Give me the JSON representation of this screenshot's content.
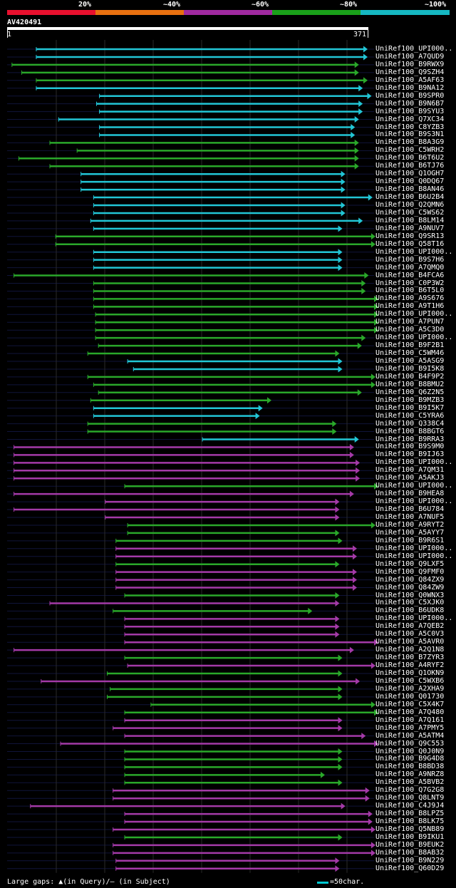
{
  "legend": [
    {
      "label": "20%",
      "color": "#e8102e"
    },
    {
      "label": "~40%",
      "color": "#e87010"
    },
    {
      "label": "~60%",
      "color": "#a02aa0"
    },
    {
      "label": "~80%",
      "color": "#1aa01a"
    },
    {
      "label": "~100%",
      "color": "#16b8c2"
    }
  ],
  "query": {
    "name": "AV420491",
    "start": "1",
    "end": "371",
    "length": 371
  },
  "colors": {
    "cyan": "#22c6d6",
    "green": "#2aa82a",
    "magenta": "#a43aa8",
    "gap": "#ffffc0"
  },
  "hits": [
    {
      "label": "UniRef100_UPI000..",
      "color": "cyan",
      "start": 30,
      "end": 371
    },
    {
      "label": "UniRef100_A7QUD9",
      "color": "cyan",
      "start": 30,
      "end": 371
    },
    {
      "label": "UniRef100_B9RWX9",
      "color": "green",
      "start": 5,
      "end": 362
    },
    {
      "label": "UniRef100_Q9SZH4",
      "color": "green",
      "start": 15,
      "end": 362
    },
    {
      "label": "UniRef100_A5AF63",
      "color": "green",
      "start": 30,
      "end": 371
    },
    {
      "label": "UniRef100_B9NA12",
      "color": "cyan",
      "start": 30,
      "end": 366
    },
    {
      "label": "UniRef100_B9SPR0",
      "color": "cyan",
      "start": 95,
      "end": 375
    },
    {
      "label": "UniRef100_B9N6B7",
      "color": "cyan",
      "start": 92,
      "end": 366
    },
    {
      "label": "UniRef100_B9SYU3",
      "color": "cyan",
      "start": 95,
      "end": 366
    },
    {
      "label": "UniRef100_Q7XC34",
      "color": "cyan",
      "start": 53,
      "end": 362
    },
    {
      "label": "UniRef100_C8YZB3",
      "color": "cyan",
      "start": 95,
      "end": 358
    },
    {
      "label": "UniRef100_B9S3N1",
      "color": "cyan",
      "start": 95,
      "end": 358
    },
    {
      "label": "UniRef100_B8A3G9",
      "color": "green",
      "start": 44,
      "end": 362
    },
    {
      "label": "UniRef100_C5WRH2",
      "color": "green",
      "start": 72,
      "end": 362
    },
    {
      "label": "UniRef100_B6T6U2",
      "color": "green",
      "start": 12,
      "end": 362
    },
    {
      "label": "UniRef100_B6TJ76",
      "color": "green",
      "start": 44,
      "end": 362
    },
    {
      "label": "UniRef100_Q1OGH7",
      "color": "cyan",
      "start": 76,
      "end": 348
    },
    {
      "label": "UniRef100_Q0DQ67",
      "color": "cyan",
      "start": 76,
      "end": 348
    },
    {
      "label": "UniRef100_B8AN46",
      "color": "cyan",
      "start": 76,
      "end": 348
    },
    {
      "label": "UniRef100_B6U2B4",
      "color": "cyan",
      "start": 89,
      "end": 376
    },
    {
      "label": "UniRef100_Q2QMN6",
      "color": "cyan",
      "start": 89,
      "end": 348
    },
    {
      "label": "UniRef100_C5WS62",
      "color": "cyan",
      "start": 89,
      "end": 348
    },
    {
      "label": "UniRef100_B8LM14",
      "color": "cyan",
      "start": 86,
      "end": 366
    },
    {
      "label": "UniRef100_A9NUV7",
      "color": "cyan",
      "start": 89,
      "end": 345
    },
    {
      "label": "UniRef100_Q9SR13",
      "color": "green",
      "start": 50,
      "end": 379
    },
    {
      "label": "UniRef100_Q58T16",
      "color": "green",
      "start": 50,
      "end": 379
    },
    {
      "label": "UniRef100_UPI000..",
      "color": "cyan",
      "start": 89,
      "end": 345
    },
    {
      "label": "UniRef100_B9S7H6",
      "color": "cyan",
      "start": 89,
      "end": 345
    },
    {
      "label": "UniRef100_A7QMQ0",
      "color": "cyan",
      "start": 89,
      "end": 345
    },
    {
      "label": "UniRef100_B4FCA6",
      "color": "green",
      "start": 7,
      "end": 372
    },
    {
      "label": "UniRef100_C0P3W2",
      "color": "green",
      "start": 89,
      "end": 369
    },
    {
      "label": "UniRef100_B6T5L0",
      "color": "green",
      "start": 89,
      "end": 369
    },
    {
      "label": "UniRef100_A9S676",
      "color": "green",
      "start": 89,
      "end": 382
    },
    {
      "label": "UniRef100_A9T1H6",
      "color": "green",
      "start": 89,
      "end": 382
    },
    {
      "label": "UniRef100_UPI000..",
      "color": "green",
      "start": 91,
      "end": 382
    },
    {
      "label": "UniRef100_A7PUN7",
      "color": "green",
      "start": 91,
      "end": 382
    },
    {
      "label": "UniRef100_A5C3D0",
      "color": "green",
      "start": 91,
      "end": 382
    },
    {
      "label": "UniRef100_UPI000..",
      "color": "green",
      "start": 91,
      "end": 369
    },
    {
      "label": "UniRef100_B9F2B1",
      "color": "green",
      "start": 94,
      "end": 365
    },
    {
      "label": "UniRef100_C5WM46",
      "color": "green",
      "start": 83,
      "end": 342
    },
    {
      "label": "UniRef100_A5ASG9",
      "color": "cyan",
      "start": 124,
      "end": 345
    },
    {
      "label": "UniRef100_B9I5K8",
      "color": "cyan",
      "start": 130,
      "end": 345
    },
    {
      "label": "UniRef100_B4F9P2",
      "color": "green",
      "start": 83,
      "end": 379
    },
    {
      "label": "UniRef100_B8BMU2",
      "color": "green",
      "start": 89,
      "end": 379
    },
    {
      "label": "UniRef100_Q6Z2N5",
      "color": "green",
      "start": 94,
      "end": 365
    },
    {
      "label": "UniRef100_B9MZB3",
      "color": "green",
      "start": 86,
      "end": 272
    },
    {
      "label": "UniRef100_B9I5K7",
      "color": "cyan",
      "start": 89,
      "end": 263
    },
    {
      "label": "UniRef100_C5YRA6",
      "color": "cyan",
      "start": 89,
      "end": 260
    },
    {
      "label": "UniRef100_Q338C4",
      "color": "green",
      "start": 83,
      "end": 339
    },
    {
      "label": "UniRef100_B8BGT6",
      "color": "green",
      "start": 83,
      "end": 339
    },
    {
      "label": "UniRef100_B9RRA3",
      "color": "cyan",
      "start": 201,
      "end": 362
    },
    {
      "label": "UniRef100_B9S9M0",
      "color": "magenta",
      "start": 7,
      "end": 357
    },
    {
      "label": "UniRef100_B9IJ63",
      "color": "magenta",
      "start": 7,
      "end": 357
    },
    {
      "label": "UniRef100_UPI000..",
      "color": "magenta",
      "start": 7,
      "end": 363
    },
    {
      "label": "UniRef100_A7QM31",
      "color": "magenta",
      "start": 7,
      "end": 363
    },
    {
      "label": "UniRef100_A5AKJ3",
      "color": "magenta",
      "start": 7,
      "end": 363
    },
    {
      "label": "UniRef100_UPI000..",
      "color": "green",
      "start": 121,
      "end": 382
    },
    {
      "label": "UniRef100_B9HEA8",
      "color": "magenta",
      "start": 7,
      "end": 357
    },
    {
      "label": "UniRef100_UPI000..",
      "color": "magenta",
      "start": 101,
      "end": 342
    },
    {
      "label": "UniRef100_B6U784",
      "color": "magenta",
      "start": 7,
      "end": 342
    },
    {
      "label": "UniRef100_A7NUF5",
      "color": "magenta",
      "start": 101,
      "end": 342
    },
    {
      "label": "UniRef100_A9RYT2",
      "color": "green",
      "start": 124,
      "end": 379
    },
    {
      "label": "UniRef100_A5AYY7",
      "color": "green",
      "start": 124,
      "end": 342
    },
    {
      "label": "UniRef100_B9R6S1",
      "color": "green",
      "start": 112,
      "end": 345
    },
    {
      "label": "UniRef100_UPI000..",
      "color": "magenta",
      "start": 112,
      "end": 360
    },
    {
      "label": "UniRef100_UPI000..",
      "color": "magenta",
      "start": 112,
      "end": 360
    },
    {
      "label": "UniRef100_Q9LXF5",
      "color": "green",
      "start": 112,
      "end": 342
    },
    {
      "label": "UniRef100_Q9FMF0",
      "color": "magenta",
      "start": 112,
      "end": 360
    },
    {
      "label": "UniRef100_Q84ZX9",
      "color": "magenta",
      "start": 112,
      "end": 360
    },
    {
      "label": "UniRef100_Q84ZW9",
      "color": "magenta",
      "start": 112,
      "end": 360
    },
    {
      "label": "UniRef100_Q0WNX3",
      "color": "green",
      "start": 121,
      "end": 342
    },
    {
      "label": "UniRef100_C5XJK0",
      "color": "magenta",
      "start": 44,
      "end": 342
    },
    {
      "label": "UniRef100_B6UDK8",
      "color": "green",
      "start": 109,
      "end": 314
    },
    {
      "label": "UniRef100_UPI000..",
      "color": "magenta",
      "start": 121,
      "end": 342
    },
    {
      "label": "UniRef100_A7QEB2",
      "color": "magenta",
      "start": 121,
      "end": 342
    },
    {
      "label": "UniRef100_A5C0V3",
      "color": "magenta",
      "start": 121,
      "end": 342
    },
    {
      "label": "UniRef100_A5AVR0",
      "color": "magenta",
      "start": 121,
      "end": 382
    },
    {
      "label": "UniRef100_A2Q1N8",
      "color": "magenta",
      "start": 7,
      "end": 357
    },
    {
      "label": "UniRef100_B7ZYR3",
      "color": "green",
      "start": 121,
      "end": 345
    },
    {
      "label": "UniRef100_A4RYF2",
      "color": "magenta",
      "start": 124,
      "end": 379
    },
    {
      "label": "UniRef100_Q1OKN9",
      "color": "green",
      "start": 103,
      "end": 345
    },
    {
      "label": "UniRef100_C5WXB6",
      "color": "magenta",
      "start": 35,
      "end": 363
    },
    {
      "label": "UniRef100_A2XHA9",
      "color": "green",
      "start": 106,
      "end": 345
    },
    {
      "label": "UniRef100_Q01730",
      "color": "green",
      "start": 103,
      "end": 345
    },
    {
      "label": "UniRef100_C5X4K7",
      "color": "green",
      "start": 148,
      "end": 379
    },
    {
      "label": "UniRef100_A7Q480",
      "color": "green",
      "start": 121,
      "end": 382
    },
    {
      "label": "UniRef100_A7Q161",
      "color": "magenta",
      "start": 121,
      "end": 345
    },
    {
      "label": "UniRef100_A7PMY5",
      "color": "magenta",
      "start": 109,
      "end": 345
    },
    {
      "label": "UniRef100_A5ATM4",
      "color": "magenta",
      "start": 121,
      "end": 369
    },
    {
      "label": "UniRef100_Q9C553",
      "color": "magenta",
      "start": 55,
      "end": 382
    },
    {
      "label": "UniRef100_Q0J0N9",
      "color": "green",
      "start": 121,
      "end": 345
    },
    {
      "label": "UniRef100_B9G4D8",
      "color": "green",
      "start": 121,
      "end": 345
    },
    {
      "label": "UniRef100_B8BD38",
      "color": "green",
      "start": 121,
      "end": 345
    },
    {
      "label": "UniRef100_A9NRZ8",
      "color": "green",
      "start": 121,
      "end": 327
    },
    {
      "label": "UniRef100_A5BVB2",
      "color": "green",
      "start": 121,
      "end": 345
    },
    {
      "label": "UniRef100_Q7G2G8",
      "color": "magenta",
      "start": 109,
      "end": 373
    },
    {
      "label": "UniRef100_Q8LNT9",
      "color": "magenta",
      "start": 109,
      "end": 373
    },
    {
      "label": "UniRef100_C4J9J4",
      "color": "magenta",
      "start": 24,
      "end": 348
    },
    {
      "label": "UniRef100_B8LPZ5",
      "color": "magenta",
      "start": 121,
      "end": 376
    },
    {
      "label": "UniRef100_B8LK75",
      "color": "magenta",
      "start": 121,
      "end": 376
    },
    {
      "label": "UniRef100_Q5NB89",
      "color": "magenta",
      "start": 109,
      "end": 379
    },
    {
      "label": "UniRef100_B9IKU1",
      "color": "green",
      "start": 121,
      "end": 345
    },
    {
      "label": "UniRef100_B9EUK2",
      "color": "magenta",
      "start": 109,
      "end": 379
    },
    {
      "label": "UniRef100_B8AB32",
      "color": "magenta",
      "start": 109,
      "end": 379
    },
    {
      "label": "UniRef100_B9N229",
      "color": "magenta",
      "start": 112,
      "end": 342
    },
    {
      "label": "UniRef100_Q60D29",
      "color": "magenta",
      "start": 112,
      "end": 342
    }
  ],
  "footer": {
    "gaps_text": "Large gaps: ▲(in Query)/– (in Subject)",
    "scale_text": "=50char."
  }
}
